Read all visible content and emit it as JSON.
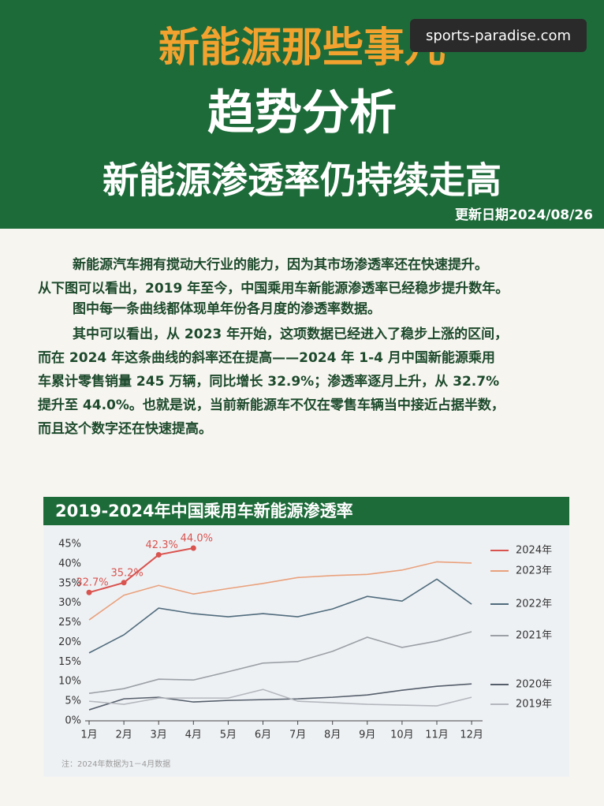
{
  "header": {
    "title": "新能源那些事儿",
    "subtitle": "趋势分析",
    "headline": "新能源渗透率仍持续走高",
    "date": "更新日期2024/08/26",
    "watermark": "sports-paradise.com"
  },
  "body_lines": [
    "新能源汽车拥有搅动大行业的能力，因为其市场渗透率还在快速提升。",
    "从下图可以看出，2019 年至今，中国乘用车新能源渗透率已经稳步提升数年。",
    "图中每一条曲线都体现单年份各月度的渗透率数据。",
    "其中可以看出，从 2023 年开始，这项数据已经进入了稳步上涨的区间，",
    "而在 2024 年这条曲线的斜率还在提高——2024 年 1-4 月中国新能源乘用",
    "车累计零售销量 245 万辆，同比增长 32.9%；渗透率逐月上升，从 32.7%",
    "提升至 44.0%。也就是说，当前新能源车不仅在零售车辆当中接近占据半数，",
    "而且这个数字还在快速提高。"
  ],
  "chart_data": {
    "type": "line",
    "title": "2019-2024年中国乘用车新能源渗透率",
    "note": "注：2024年数据为1－4月数据",
    "categories": [
      "1月",
      "2月",
      "3月",
      "4月",
      "5月",
      "6月",
      "7月",
      "8月",
      "9月",
      "10月",
      "11月",
      "12月"
    ],
    "ylim": [
      0,
      45
    ],
    "yticks": [
      {
        "value": 0,
        "label": "0%"
      },
      {
        "value": 5,
        "label": "5%"
      },
      {
        "value": 10,
        "label": "10%"
      },
      {
        "value": 15,
        "label": "15%"
      },
      {
        "value": 20,
        "label": "20%"
      },
      {
        "value": 25,
        "label": "25%"
      },
      {
        "value": 30,
        "label": "30%"
      },
      {
        "value": 35,
        "label": "35%"
      },
      {
        "value": 40,
        "label": "40%"
      },
      {
        "value": 45,
        "label": "45%"
      }
    ],
    "grid": false,
    "legend": "right",
    "series": [
      {
        "name": "2024年",
        "color": "#d9534f",
        "values": [
          32.7,
          35.2,
          42.3,
          44.0,
          null,
          null,
          null,
          null,
          null,
          null,
          null,
          null
        ],
        "value_labels": [
          "32.7%",
          "35.2%",
          "42.3%",
          "44.0%",
          null,
          null,
          null,
          null,
          null,
          null,
          null,
          null
        ]
      },
      {
        "name": "2023年",
        "color": "#e9a17c",
        "values": [
          25.7,
          32,
          34.5,
          32.3,
          33.7,
          35,
          36.5,
          37,
          37.3,
          38.4,
          40.5,
          40.2
        ]
      },
      {
        "name": "2022年",
        "color": "#4f6b7c",
        "values": [
          17.3,
          21.9,
          28.7,
          27.3,
          26.5,
          27.3,
          26.5,
          28.5,
          31.7,
          30.5,
          36.1,
          29.7
        ]
      },
      {
        "name": "2021年",
        "color": "#9aa0a6",
        "values": [
          7,
          8.2,
          10.6,
          10.4,
          12.5,
          14.7,
          15.1,
          17.7,
          21.3,
          18.7,
          20.3,
          22.7
        ]
      },
      {
        "name": "2020年",
        "color": "#555e6b",
        "values": [
          2.8,
          5.6,
          6,
          4.8,
          5.2,
          5.4,
          5.6,
          6,
          6.6,
          7.8,
          8.8,
          9.4
        ]
      },
      {
        "name": "2019年",
        "color": "#b4b8be",
        "values": [
          5,
          4.2,
          5.8,
          5.8,
          5.8,
          8,
          5,
          4.6,
          4.2,
          4,
          3.8,
          6
        ]
      }
    ]
  }
}
